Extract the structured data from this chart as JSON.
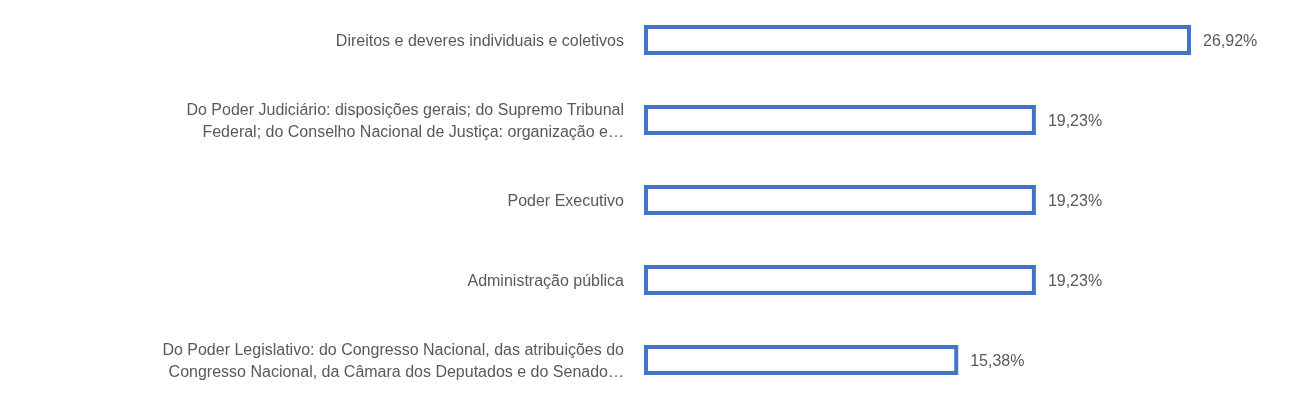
{
  "chart_data": {
    "type": "bar",
    "orientation": "horizontal",
    "categories": [
      "Direitos e deveres individuais e coletivos",
      "Do Poder Judiciário: disposições gerais; do Supremo Tribunal Federal; do Conselho Nacional de Justiça: organização e…",
      "Poder Executivo",
      "Administração pública",
      "Do Poder Legislativo: do Congresso Nacional, das atribuições do Congresso Nacional, da Câmara dos Deputados e do Senado…"
    ],
    "values": [
      26.92,
      19.23,
      19.23,
      19.23,
      15.38
    ],
    "value_labels": [
      "26,92%",
      "19,23%",
      "19,23%",
      "19,23%",
      "15,38%"
    ],
    "color": "#4472c4",
    "grid": false,
    "legend": false
  }
}
